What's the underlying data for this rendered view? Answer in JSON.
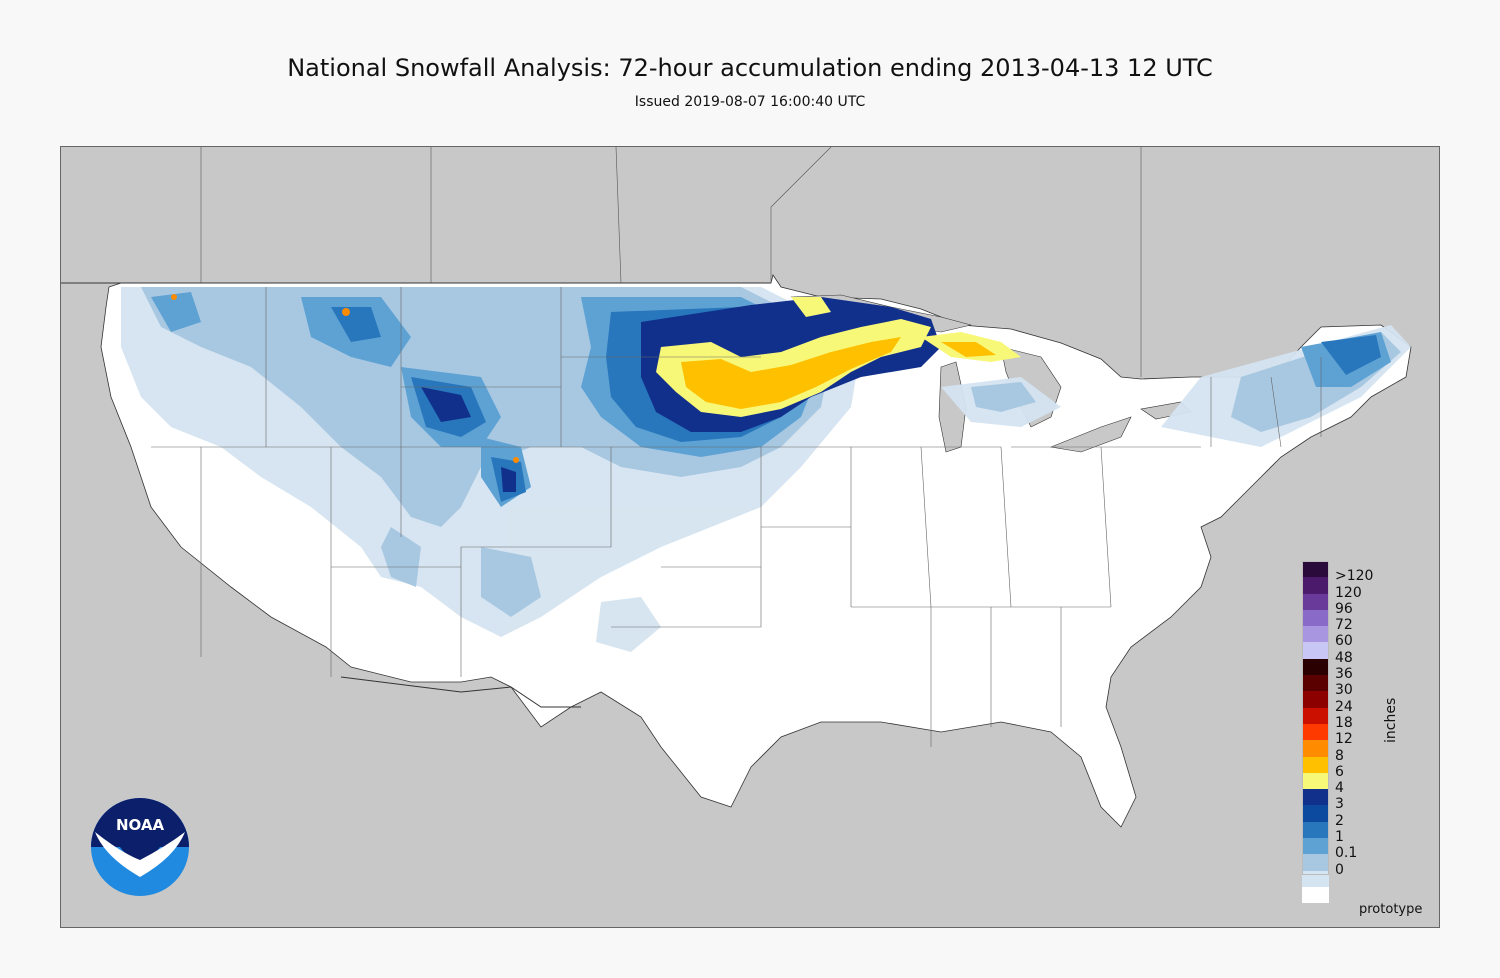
{
  "header": {
    "title": "National Snowfall Analysis: 72-hour accumulation ending 2013-04-13 12 UTC",
    "subtitle": "Issued 2019-08-07 16:00:40 UTC"
  },
  "legend": {
    "units": "inches",
    "levels": [
      {
        "label": ">120",
        "color": "#2a0a3a"
      },
      {
        "label": "120",
        "color": "#4b1a6a"
      },
      {
        "label": "96",
        "color": "#6a3a9a"
      },
      {
        "label": "72",
        "color": "#8a6ac8"
      },
      {
        "label": "60",
        "color": "#a896e0"
      },
      {
        "label": "48",
        "color": "#c8c6f4"
      },
      {
        "label": "36",
        "color": "#2a0000"
      },
      {
        "label": "30",
        "color": "#5a0000"
      },
      {
        "label": "24",
        "color": "#8c0000"
      },
      {
        "label": "18",
        "color": "#cc1000"
      },
      {
        "label": "12",
        "color": "#ff3a00"
      },
      {
        "label": "8",
        "color": "#ff8c00"
      },
      {
        "label": "6",
        "color": "#ffc000"
      },
      {
        "label": "4",
        "color": "#f8f878"
      },
      {
        "label": "3",
        "color": "#10308c"
      },
      {
        "label": "2",
        "color": "#0c4aa0"
      },
      {
        "label": "1",
        "color": "#2876bc"
      },
      {
        "label": "0.1",
        "color": "#5ea2d4"
      },
      {
        "label": "0",
        "color": "#a8c8e2"
      }
    ],
    "extra_bottom_colors": [
      "#d4e4f0",
      "#ffffff"
    ]
  },
  "map": {
    "land_color": "#ffffff",
    "outside_color": "#c8c8c8",
    "snow_colors": {
      "trace": "#d4e4f0",
      "light": "#a8c8e2",
      "moderate": "#5ea2d4",
      "heavy": "#2876bc",
      "very_heavy": "#10308c",
      "yellow": "#f8f878",
      "orange": "#ffc000",
      "deep_orange": "#ff8c00"
    }
  },
  "footer": {
    "note": "prototype",
    "logo_text": "NOAA"
  }
}
